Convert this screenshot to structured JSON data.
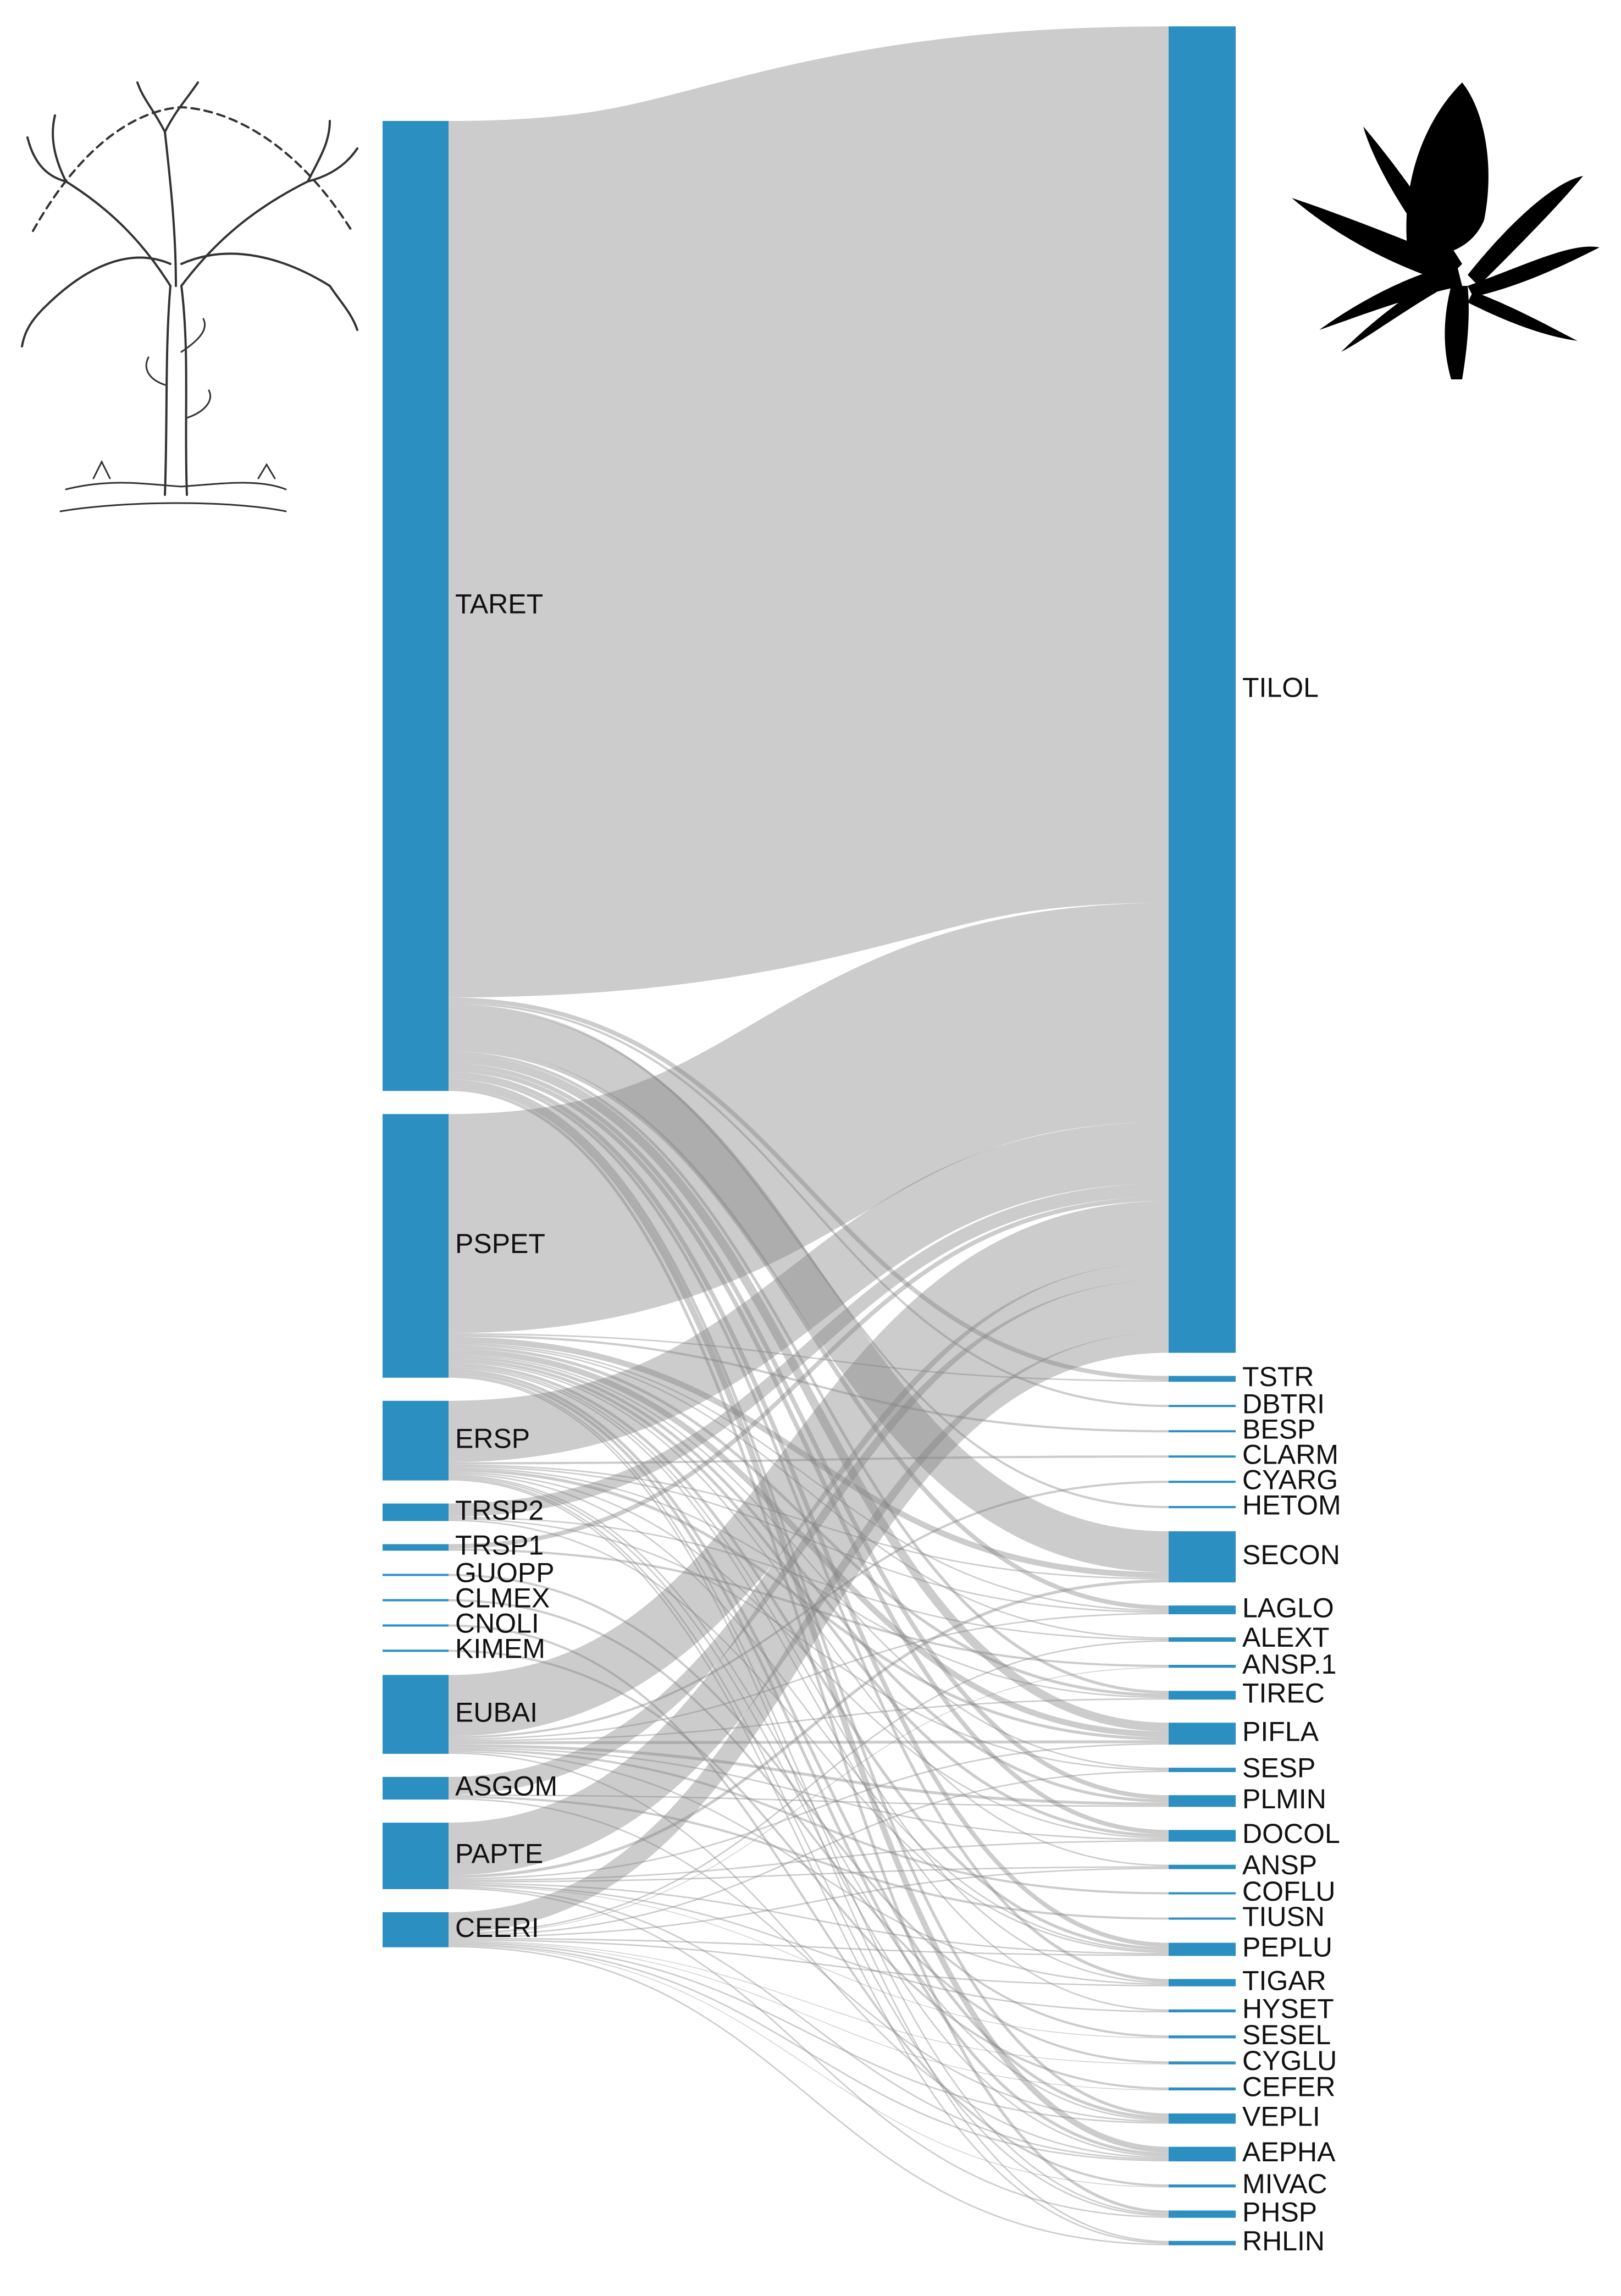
{
  "chart_data": {
    "type": "sankey",
    "node_color": "#2b8fc2",
    "link_color": "#808080",
    "link_opacity": 0.4,
    "left_nodes": [
      "TARET",
      "PSPET",
      "ERSP",
      "TRSP2",
      "TRSP1",
      "GUOPP",
      "CLMEX",
      "CNOLI",
      "KIMEM",
      "EUBAI",
      "ASGOM",
      "PAPTE",
      "CEERI"
    ],
    "right_nodes": [
      "TILOL",
      "TSTR",
      "DBTRI",
      "BESP",
      "CLARM",
      "CYARG",
      "HETOM",
      "SECON",
      "LAGLO",
      "ALEXT",
      "ANSP.1",
      "TIREC",
      "PIFLA",
      "SESP",
      "PLMIN",
      "DOCOL",
      "ANSP",
      "COFLU",
      "TIUSN",
      "PEPLU",
      "TIGAR",
      "HYSET",
      "SESEL",
      "CYGLU",
      "CEFER",
      "VEPLI",
      "AEPHA",
      "MIVAC",
      "PHSP",
      "RHLIN"
    ],
    "links": [
      {
        "source": "TARET",
        "target": "TILOL",
        "value": 600
      },
      {
        "source": "TARET",
        "target": "SECON",
        "value": 28
      },
      {
        "source": "TARET",
        "target": "TSTR",
        "value": 3
      },
      {
        "source": "TARET",
        "target": "LAGLO",
        "value": 3
      },
      {
        "source": "TARET",
        "target": "PIFLA",
        "value": 6
      },
      {
        "source": "TARET",
        "target": "PLMIN",
        "value": 3
      },
      {
        "source": "TARET",
        "target": "DOCOL",
        "value": 3
      },
      {
        "source": "TARET",
        "target": "PEPLU",
        "value": 3
      },
      {
        "source": "TARET",
        "target": "AEPHA",
        "value": 4
      },
      {
        "source": "TARET",
        "target": "TIGAR",
        "value": 2
      },
      {
        "source": "TARET",
        "target": "VEPLI",
        "value": 2
      },
      {
        "source": "TARET",
        "target": "PHSP",
        "value": 2
      },
      {
        "source": "TARET",
        "target": "TIREC",
        "value": 2
      },
      {
        "source": "TARET",
        "target": "DBTRI",
        "value": 1.5
      },
      {
        "source": "TARET",
        "target": "HETOM",
        "value": 1.5
      },
      {
        "source": "PSPET",
        "target": "TILOL",
        "value": 150
      },
      {
        "source": "PSPET",
        "target": "SECON",
        "value": 4
      },
      {
        "source": "PSPET",
        "target": "PIFLA",
        "value": 4
      },
      {
        "source": "PSPET",
        "target": "TIREC",
        "value": 2
      },
      {
        "source": "PSPET",
        "target": "DOCOL",
        "value": 2
      },
      {
        "source": "PSPET",
        "target": "PLMIN",
        "value": 2
      },
      {
        "source": "PSPET",
        "target": "PEPLU",
        "value": 2
      },
      {
        "source": "PSPET",
        "target": "AEPHA",
        "value": 2
      },
      {
        "source": "PSPET",
        "target": "VEPLI",
        "value": 2
      },
      {
        "source": "PSPET",
        "target": "LAGLO",
        "value": 1
      },
      {
        "source": "PSPET",
        "target": "SESP",
        "value": 1
      },
      {
        "source": "PSPET",
        "target": "TIGAR",
        "value": 1
      },
      {
        "source": "PSPET",
        "target": "HYSET",
        "value": 1
      },
      {
        "source": "PSPET",
        "target": "PHSP",
        "value": 1
      },
      {
        "source": "PSPET",
        "target": "ANSP",
        "value": 1
      },
      {
        "source": "PSPET",
        "target": "RHLIN",
        "value": 1
      },
      {
        "source": "PSPET",
        "target": "ALEXT",
        "value": 1
      },
      {
        "source": "PSPET",
        "target": "TSTR",
        "value": 1
      },
      {
        "source": "PSPET",
        "target": "BESP",
        "value": 1.5
      },
      {
        "source": "ERSP",
        "target": "TILOL",
        "value": 42
      },
      {
        "source": "ERSP",
        "target": "PIFLA",
        "value": 2
      },
      {
        "source": "ERSP",
        "target": "SECON",
        "value": 1
      },
      {
        "source": "ERSP",
        "target": "DOCOL",
        "value": 1
      },
      {
        "source": "ERSP",
        "target": "PEPLU",
        "value": 1
      },
      {
        "source": "ERSP",
        "target": "AEPHA",
        "value": 1
      },
      {
        "source": "ERSP",
        "target": "TIREC",
        "value": 1
      },
      {
        "source": "ERSP",
        "target": "VEPLI",
        "value": 1
      },
      {
        "source": "ERSP",
        "target": "PHSP",
        "value": 1
      },
      {
        "source": "ERSP",
        "target": "LAGLO",
        "value": 1
      },
      {
        "source": "ERSP",
        "target": "CLARM",
        "value": 1.5
      },
      {
        "source": "ERSP",
        "target": "RHLIN",
        "value": 1
      },
      {
        "source": "TRSP2",
        "target": "TILOL",
        "value": 9
      },
      {
        "source": "TRSP2",
        "target": "PEPLU",
        "value": 1
      },
      {
        "source": "TRSP2",
        "target": "ALEXT",
        "value": 1
      },
      {
        "source": "TRSP2",
        "target": "SESP",
        "value": 1
      },
      {
        "source": "TRSP1",
        "target": "TILOL",
        "value": 3
      },
      {
        "source": "TRSP1",
        "target": "ANSP.1",
        "value": 1.5
      },
      {
        "source": "GUOPP",
        "target": "SESEL",
        "value": 1.5
      },
      {
        "source": "CLMEX",
        "target": "CYGLU",
        "value": 1.5
      },
      {
        "source": "CNOLI",
        "target": "MIVAC",
        "value": 1.5
      },
      {
        "source": "KIMEM",
        "target": "CEFER",
        "value": 1.5
      },
      {
        "source": "EUBAI",
        "target": "TILOL",
        "value": 42
      },
      {
        "source": "EUBAI",
        "target": "PIFLA",
        "value": 2
      },
      {
        "source": "EUBAI",
        "target": "PLMIN",
        "value": 2
      },
      {
        "source": "EUBAI",
        "target": "DOCOL",
        "value": 1
      },
      {
        "source": "EUBAI",
        "target": "AEPHA",
        "value": 1
      },
      {
        "source": "EUBAI",
        "target": "TIGAR",
        "value": 1
      },
      {
        "source": "EUBAI",
        "target": "TIREC",
        "value": 1
      },
      {
        "source": "EUBAI",
        "target": "LAGLO",
        "value": 1
      },
      {
        "source": "EUBAI",
        "target": "CYARG",
        "value": 1.5
      },
      {
        "source": "EUBAI",
        "target": "COFLU",
        "value": 1.5
      },
      {
        "source": "ASGOM",
        "target": "TILOL",
        "value": 12
      },
      {
        "source": "ASGOM",
        "target": "PLMIN",
        "value": 1
      },
      {
        "source": "ASGOM",
        "target": "VEPLI",
        "value": 1
      },
      {
        "source": "ASGOM",
        "target": "TIUSN",
        "value": 1.5
      },
      {
        "source": "PAPTE",
        "target": "TILOL",
        "value": 36
      },
      {
        "source": "PAPTE",
        "target": "PIFLA",
        "value": 1
      },
      {
        "source": "PAPTE",
        "target": "DOCOL",
        "value": 1
      },
      {
        "source": "PAPTE",
        "target": "PEPLU",
        "value": 1
      },
      {
        "source": "PAPTE",
        "target": "AEPHA",
        "value": 1
      },
      {
        "source": "PAPTE",
        "target": "PHSP",
        "value": 1
      },
      {
        "source": "PAPTE",
        "target": "SECON",
        "value": 2
      },
      {
        "source": "PAPTE",
        "target": "HYSET",
        "value": 1
      },
      {
        "source": "PAPTE",
        "target": "ANSP",
        "value": 1
      },
      {
        "source": "PAPTE",
        "target": "SESEL",
        "value": 0.5
      },
      {
        "source": "CEERI",
        "target": "TILOL",
        "value": 14
      },
      {
        "source": "CEERI",
        "target": "ALEXT",
        "value": 1
      },
      {
        "source": "CEERI",
        "target": "ANSP.1",
        "value": 0.5
      },
      {
        "source": "CEERI",
        "target": "RHLIN",
        "value": 1
      },
      {
        "source": "CEERI",
        "target": "VEPLI",
        "value": 1
      },
      {
        "source": "CEERI",
        "target": "PEPLU",
        "value": 1
      },
      {
        "source": "CEERI",
        "target": "AEPHA",
        "value": 1
      },
      {
        "source": "CEERI",
        "target": "TIGAR",
        "value": 1
      },
      {
        "source": "CEERI",
        "target": "CYGLU",
        "value": 0.5
      },
      {
        "source": "CEERI",
        "target": "MIVAC",
        "value": 0.5
      },
      {
        "source": "CEERI",
        "target": "CEFER",
        "value": 0.5
      },
      {
        "source": "CEERI",
        "target": "ANSP",
        "value": 1
      },
      {
        "source": "CEERI",
        "target": "SESP",
        "value": 1
      }
    ]
  }
}
